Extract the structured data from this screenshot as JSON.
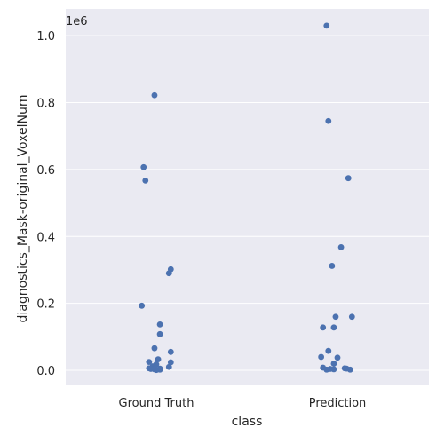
{
  "chart_data": {
    "type": "scatter",
    "style": "strip plot with jitter",
    "xlabel": "class",
    "ylabel": "diagnostics_Mask-original_VoxelNum",
    "y_offset_text": "1e6",
    "categories": [
      "Ground Truth",
      "Prediction"
    ],
    "ylim": [
      -0.045,
      1.08
    ],
    "yticks": [
      0.0,
      0.2,
      0.4,
      0.6,
      0.8,
      1.0
    ],
    "ytick_labels": [
      "0.0",
      "0.2",
      "0.4",
      "0.6",
      "0.8",
      "1.0"
    ],
    "grid": true,
    "background_color": "#eaeaf2",
    "grid_color": "#ffffff",
    "marker_color": "#4c72b0",
    "series": [
      {
        "category": "Ground Truth",
        "points": [
          {
            "jitter": -0.01,
            "value": 0.822
          },
          {
            "jitter": -0.07,
            "value": 0.607
          },
          {
            "jitter": -0.06,
            "value": 0.567
          },
          {
            "jitter": 0.08,
            "value": 0.302
          },
          {
            "jitter": 0.07,
            "value": 0.29
          },
          {
            "jitter": -0.08,
            "value": 0.193
          },
          {
            "jitter": 0.02,
            "value": 0.137
          },
          {
            "jitter": 0.02,
            "value": 0.108
          },
          {
            "jitter": -0.01,
            "value": 0.066
          },
          {
            "jitter": 0.08,
            "value": 0.055
          },
          {
            "jitter": 0.01,
            "value": 0.033
          },
          {
            "jitter": -0.04,
            "value": 0.025
          },
          {
            "jitter": 0.08,
            "value": 0.024
          },
          {
            "jitter": 0.0,
            "value": 0.018
          },
          {
            "jitter": -0.02,
            "value": 0.012
          },
          {
            "jitter": 0.07,
            "value": 0.01
          },
          {
            "jitter": -0.04,
            "value": 0.006
          },
          {
            "jitter": 0.02,
            "value": 0.005
          },
          {
            "jitter": -0.03,
            "value": 0.004
          },
          {
            "jitter": -0.01,
            "value": 0.003
          },
          {
            "jitter": 0.02,
            "value": 0.002
          },
          {
            "jitter": 0.0,
            "value": 0.001
          }
        ]
      },
      {
        "category": "Prediction",
        "points": [
          {
            "jitter": -0.06,
            "value": 1.03
          },
          {
            "jitter": -0.05,
            "value": 0.745
          },
          {
            "jitter": 0.06,
            "value": 0.574
          },
          {
            "jitter": 0.02,
            "value": 0.368
          },
          {
            "jitter": -0.03,
            "value": 0.312
          },
          {
            "jitter": -0.01,
            "value": 0.16
          },
          {
            "jitter": 0.08,
            "value": 0.16
          },
          {
            "jitter": -0.08,
            "value": 0.128
          },
          {
            "jitter": -0.02,
            "value": 0.128
          },
          {
            "jitter": -0.05,
            "value": 0.058
          },
          {
            "jitter": -0.09,
            "value": 0.04
          },
          {
            "jitter": 0.0,
            "value": 0.038
          },
          {
            "jitter": -0.02,
            "value": 0.02
          },
          {
            "jitter": -0.08,
            "value": 0.008
          },
          {
            "jitter": 0.04,
            "value": 0.006
          },
          {
            "jitter": 0.05,
            "value": 0.005
          },
          {
            "jitter": -0.04,
            "value": 0.004
          },
          {
            "jitter": -0.02,
            "value": 0.003
          },
          {
            "jitter": 0.07,
            "value": 0.002
          },
          {
            "jitter": -0.06,
            "value": 0.002
          }
        ]
      }
    ]
  }
}
